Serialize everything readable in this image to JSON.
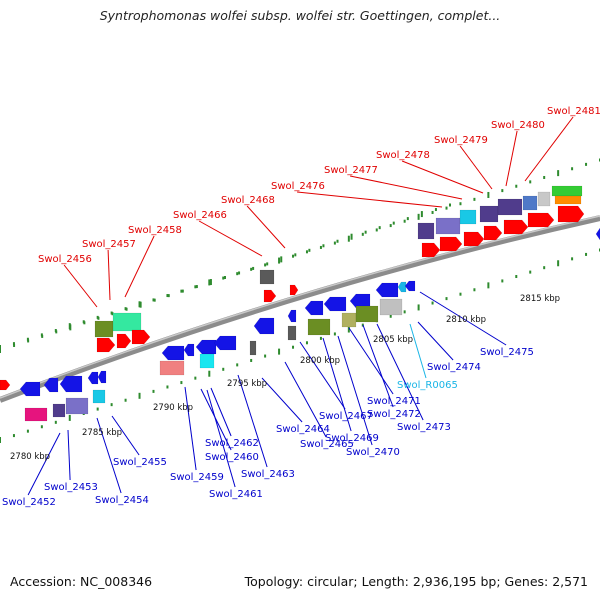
{
  "title": "Syntrophomonas wolfei subsp. wolfei str. Goettingen, complet...",
  "footer": {
    "accession": "Accession: NC_008346",
    "summary": "Topology: circular; Length: 2,936,195 bp; Genes: 2,571"
  },
  "colors": {
    "label_top": "#e00000",
    "label_bottom": "#0000cc",
    "label_rna": "#19b5e6",
    "backbone": "#8c8c8c",
    "dots": "#2e8b2e"
  },
  "top_labels": [
    "Swol_2456",
    "Swol_2457",
    "Swol_2458",
    "Swol_2466",
    "Swol_2468",
    "Swol_2476",
    "Swol_2477",
    "Swol_2478",
    "Swol_2479",
    "Swol_2480",
    "Swol_2481"
  ],
  "bottom_labels": [
    "Swol_2452",
    "Swol_2453",
    "Swol_2454",
    "Swol_2455",
    "Swol_2459",
    "Swol_2460",
    "Swol_2461",
    "Swol_2462",
    "Swol_2463",
    "Swol_2464",
    "Swol_2465",
    "Swol_2467",
    "Swol_2469",
    "Swol_2470",
    "Swol_2471",
    "Swol_2472",
    "Swol_2473",
    "Swol_R0065",
    "Swol_2474",
    "Swol_2475"
  ],
  "kbp_ticks": [
    "2780 kbp",
    "2785 kbp",
    "2790 kbp",
    "2795 kbp",
    "2800 kbp",
    "2805 kbp",
    "2810 kbp",
    "2815 kbp"
  ]
}
